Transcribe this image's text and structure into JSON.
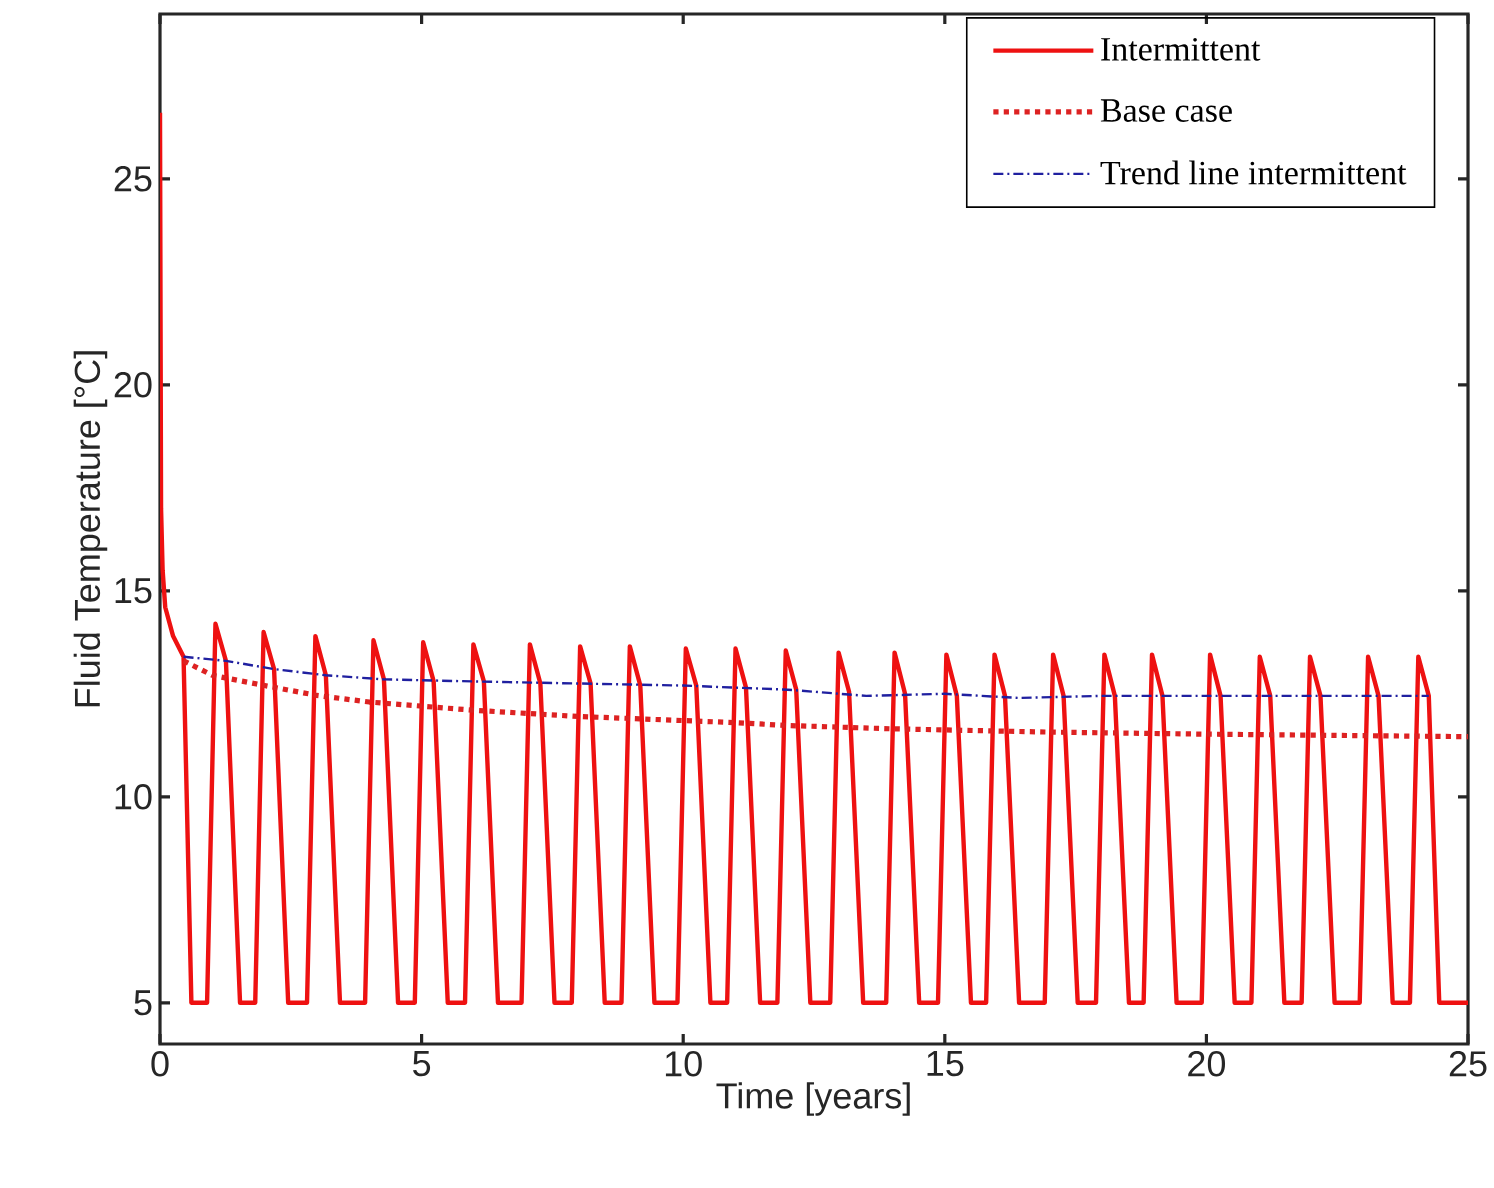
{
  "chart_data": {
    "type": "line",
    "xlabel": "Time [years]",
    "ylabel": "Fluid Temperature [°C]",
    "xlim": [
      0,
      25
    ],
    "ylim": [
      4,
      29
    ],
    "xticks": [
      0,
      5,
      10,
      15,
      20,
      25
    ],
    "yticks": [
      5,
      10,
      15,
      20,
      25
    ],
    "grid": false,
    "legend": "top right",
    "marker": "none",
    "series": [
      {
        "name": "Intermittent",
        "color": "#ee1111",
        "line_style": "solid",
        "x": [
          0,
          0.02,
          0.05,
          0.1,
          0.25,
          0.45,
          0.6,
          0.9,
          1.06,
          1.26,
          1.53,
          1.82,
          1.98,
          2.18,
          2.45,
          2.81,
          2.97,
          3.17,
          3.44,
          3.92,
          4.08,
          4.28,
          4.55,
          4.87,
          5.03,
          5.23,
          5.5,
          5.83,
          5.99,
          6.19,
          6.46,
          6.91,
          7.07,
          7.27,
          7.54,
          7.87,
          8.03,
          8.23,
          8.5,
          8.82,
          8.98,
          9.18,
          9.45,
          9.89,
          10.05,
          10.25,
          10.52,
          10.84,
          11.0,
          11.2,
          11.47,
          11.8,
          11.96,
          12.16,
          12.43,
          12.81,
          12.97,
          13.17,
          13.44,
          13.88,
          14.04,
          14.24,
          14.51,
          14.87,
          15.03,
          15.23,
          15.5,
          15.79,
          15.95,
          16.15,
          16.42,
          16.91,
          17.07,
          17.27,
          17.54,
          17.89,
          18.05,
          18.25,
          18.52,
          18.8,
          18.96,
          19.16,
          19.43,
          19.91,
          20.07,
          20.27,
          20.54,
          20.86,
          21.02,
          21.22,
          21.49,
          21.82,
          21.98,
          22.18,
          22.45,
          22.93,
          23.09,
          23.29,
          23.56,
          23.89,
          24.05,
          24.25,
          24.45,
          25
        ],
        "values": [
          26.6,
          17,
          15.5,
          14.6,
          13.9,
          13.4,
          5,
          5,
          14.2,
          13.3,
          5,
          5,
          14.0,
          13.1,
          5,
          5,
          13.9,
          12.95,
          5,
          5,
          13.8,
          12.85,
          5,
          5,
          13.75,
          12.8,
          5,
          5,
          13.7,
          12.8,
          5,
          5,
          13.7,
          12.75,
          5,
          5,
          13.65,
          12.75,
          5,
          5,
          13.65,
          12.7,
          5,
          5,
          13.6,
          12.7,
          5,
          5,
          13.6,
          12.65,
          5,
          5,
          13.55,
          12.6,
          5,
          5,
          13.5,
          12.55,
          5,
          5,
          13.5,
          12.5,
          5,
          5,
          13.45,
          12.45,
          5,
          5,
          13.45,
          12.45,
          5,
          5,
          13.45,
          12.45,
          5,
          5,
          13.45,
          12.45,
          5,
          5,
          13.45,
          12.45,
          5,
          5,
          13.45,
          12.45,
          5,
          5,
          13.4,
          12.45,
          5,
          5,
          13.4,
          12.45,
          5,
          5,
          13.4,
          12.45,
          5,
          5,
          13.4,
          12.45,
          5,
          5
        ]
      },
      {
        "name": "Base case",
        "color": "#dd2222",
        "line_style": "dotted",
        "x": [
          0.45,
          1,
          2,
          3,
          4,
          6,
          8,
          11,
          12,
          14,
          17,
          20,
          25
        ],
        "values": [
          13.3,
          12.95,
          12.7,
          12.46,
          12.3,
          12.1,
          11.95,
          11.8,
          11.73,
          11.65,
          11.57,
          11.52,
          11.46
        ]
      },
      {
        "name": "Trend line intermittent",
        "color": "#2020a0",
        "line_style": "dashdot",
        "x": [
          0.45,
          1.26,
          2.18,
          3.17,
          4.28,
          6,
          8,
          10,
          12,
          13.5,
          15,
          16.4,
          18,
          20,
          22,
          24.25
        ],
        "values": [
          13.4,
          13.3,
          13.1,
          12.95,
          12.85,
          12.8,
          12.75,
          12.7,
          12.6,
          12.45,
          12.5,
          12.4,
          12.45,
          12.45,
          12.45,
          12.45
        ]
      }
    ]
  }
}
